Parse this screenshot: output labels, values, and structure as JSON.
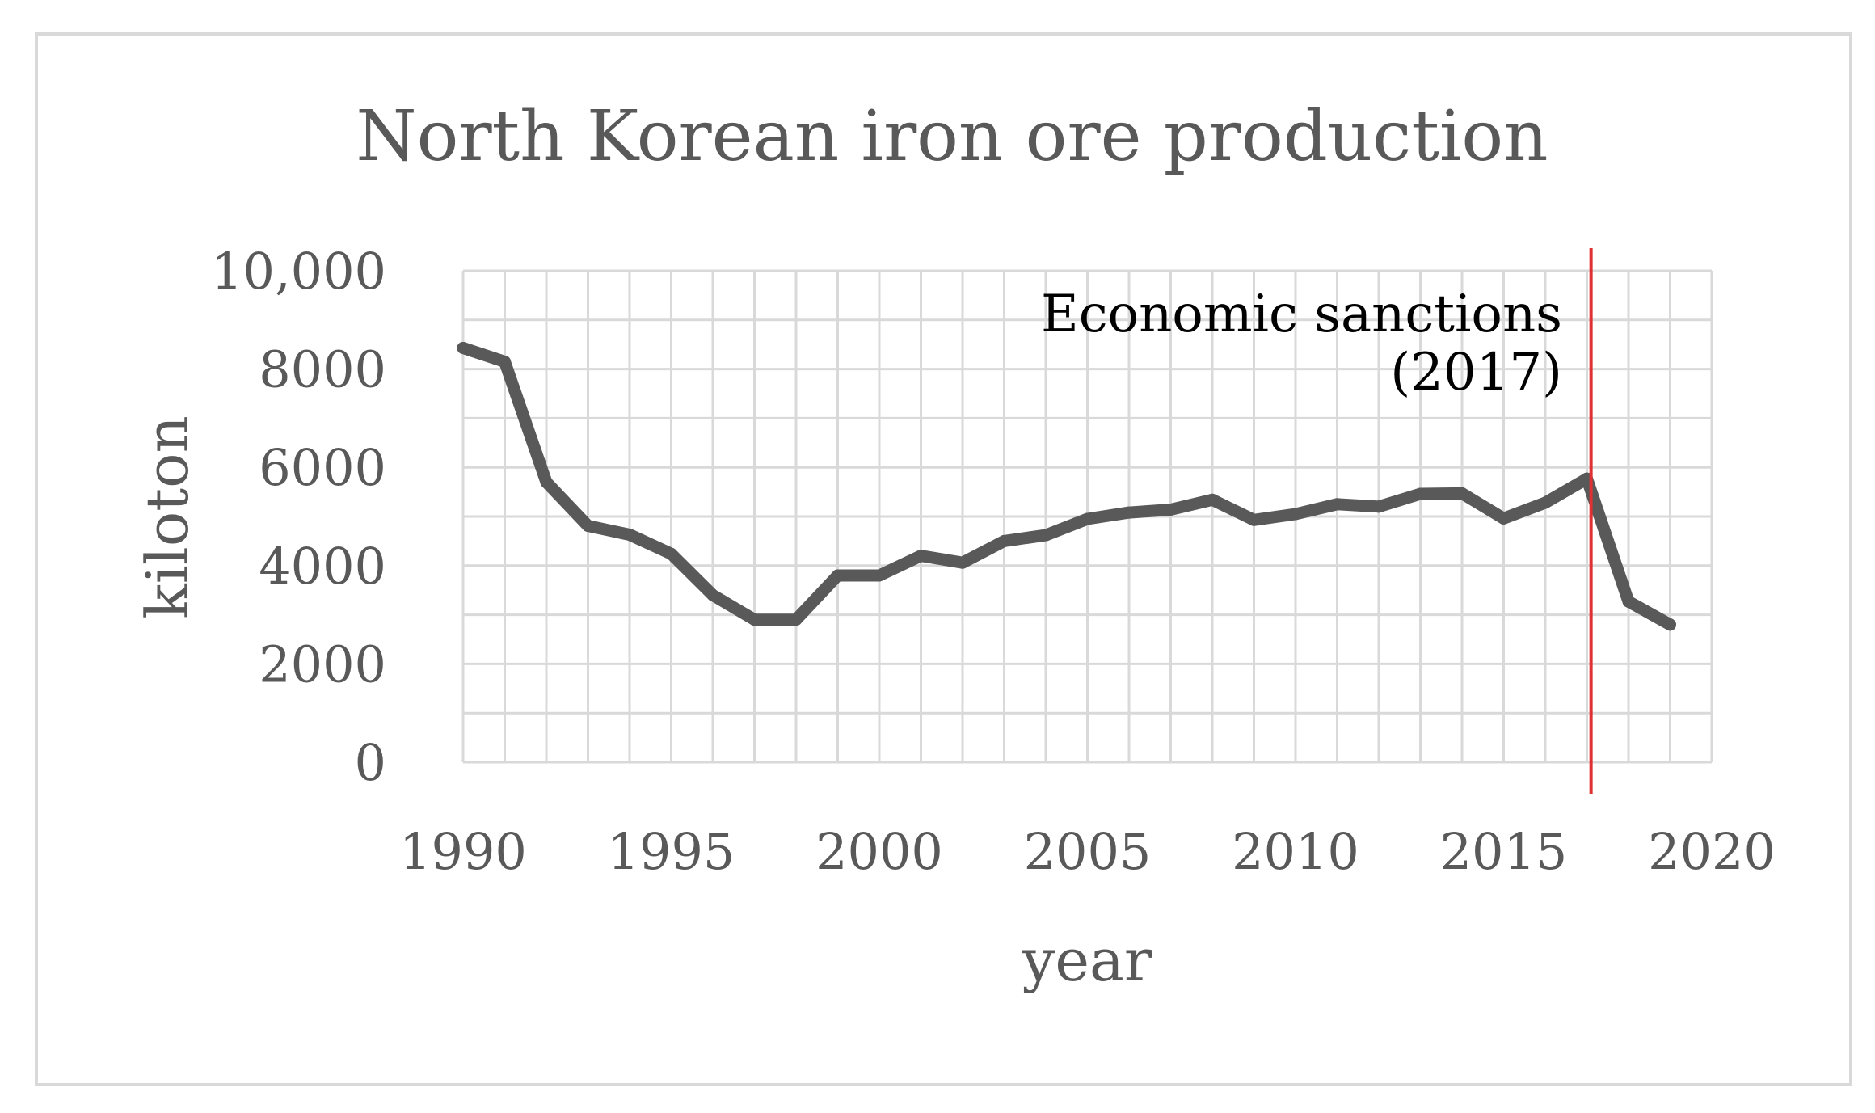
{
  "chart_data": {
    "type": "line",
    "title": "North Korean iron ore production",
    "xlabel": "year",
    "ylabel": "kiloton",
    "xlim": [
      1990,
      2020
    ],
    "ylim": [
      0,
      10000
    ],
    "x_ticks": [
      "1990",
      "1995",
      "2000",
      "2005",
      "2010",
      "2015",
      "2020"
    ],
    "y_ticks": [
      "0",
      "2000",
      "4000",
      "6000",
      "8000",
      "10,000"
    ],
    "grid": true,
    "series": [
      {
        "name": "iron ore production",
        "color": "#595959",
        "x": [
          1990,
          1991,
          1992,
          1993,
          1994,
          1995,
          1996,
          1997,
          1998,
          1999,
          2000,
          2001,
          2002,
          2003,
          2004,
          2005,
          2006,
          2007,
          2008,
          2009,
          2010,
          2011,
          2012,
          2013,
          2014,
          2015,
          2016,
          2017,
          2018,
          2019
        ],
        "values": [
          8430,
          8150,
          5700,
          4810,
          4630,
          4240,
          3400,
          2900,
          2900,
          3800,
          3800,
          4200,
          4060,
          4500,
          4620,
          4950,
          5080,
          5140,
          5340,
          4930,
          5050,
          5250,
          5200,
          5460,
          5470,
          4960,
          5280,
          5770,
          3270,
          2800
        ]
      }
    ],
    "annotation": {
      "line_text": "Economic sanctions",
      "year_text": "(2017)",
      "x": 2017.1,
      "color": "#e03030"
    }
  }
}
